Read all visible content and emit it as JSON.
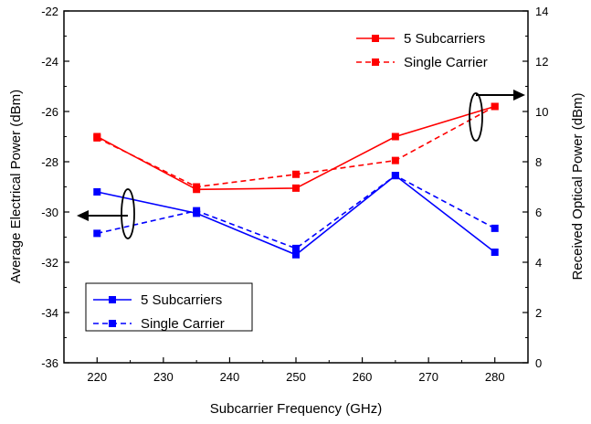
{
  "chart_data": {
    "type": "line",
    "xlabel": "Subcarrier Frequency (GHz)",
    "ylabel_left": "Average Electrical Power (dBm)",
    "ylabel_right": "Received Optical Power (dBm)",
    "x_ticks": [
      "220",
      "230",
      "240",
      "250",
      "260",
      "270",
      "280"
    ],
    "y_left_ticks": [
      "-36",
      "-34",
      "-32",
      "-30",
      "-28",
      "-26",
      "-24",
      "-22"
    ],
    "y_right_ticks": [
      "0",
      "2",
      "4",
      "6",
      "8",
      "10",
      "12",
      "14"
    ],
    "xlim": [
      215,
      285
    ],
    "ylim_left": [
      -36,
      -22
    ],
    "ylim_right": [
      0,
      14
    ],
    "grid": false,
    "series": [
      {
        "name": "5 Subcarriers",
        "axis": "right",
        "color": "#ff0000",
        "dash": false,
        "x": [
          220,
          235,
          250,
          265,
          280
        ],
        "y": [
          9.0,
          6.9,
          6.95,
          9.0,
          10.2
        ]
      },
      {
        "name": "Single Carrier",
        "axis": "right",
        "color": "#ff0000",
        "dash": true,
        "x": [
          220,
          235,
          250,
          265,
          280
        ],
        "y": [
          8.95,
          7.0,
          7.5,
          8.05,
          10.2
        ]
      },
      {
        "name": "5 Subcarriers",
        "axis": "left",
        "color": "#0000ff",
        "dash": false,
        "x": [
          220,
          235,
          250,
          265,
          280
        ],
        "y": [
          -29.2,
          -30.05,
          -31.7,
          -28.55,
          -31.6
        ]
      },
      {
        "name": "Single Carrier",
        "axis": "left",
        "color": "#0000ff",
        "dash": true,
        "x": [
          220,
          235,
          250,
          265,
          280
        ],
        "y": [
          -30.85,
          -29.95,
          -31.45,
          -28.55,
          -30.65
        ]
      }
    ],
    "legends": [
      {
        "placement": "top-right",
        "entries": [
          {
            "label": "5 Subcarriers",
            "color": "#ff0000",
            "dash": false
          },
          {
            "label": "Single Carrier",
            "color": "#ff0000",
            "dash": true
          }
        ]
      },
      {
        "placement": "bottom-left",
        "entries": [
          {
            "label": "5 Subcarriers",
            "color": "#0000ff",
            "dash": false
          },
          {
            "label": "Single Carrier",
            "color": "#0000ff",
            "dash": true
          }
        ]
      }
    ],
    "annotations": [
      {
        "type": "axis-pointer",
        "series_color": "#0000ff",
        "points_to": "left"
      },
      {
        "type": "axis-pointer",
        "series_color": "#ff0000",
        "points_to": "right"
      }
    ]
  }
}
